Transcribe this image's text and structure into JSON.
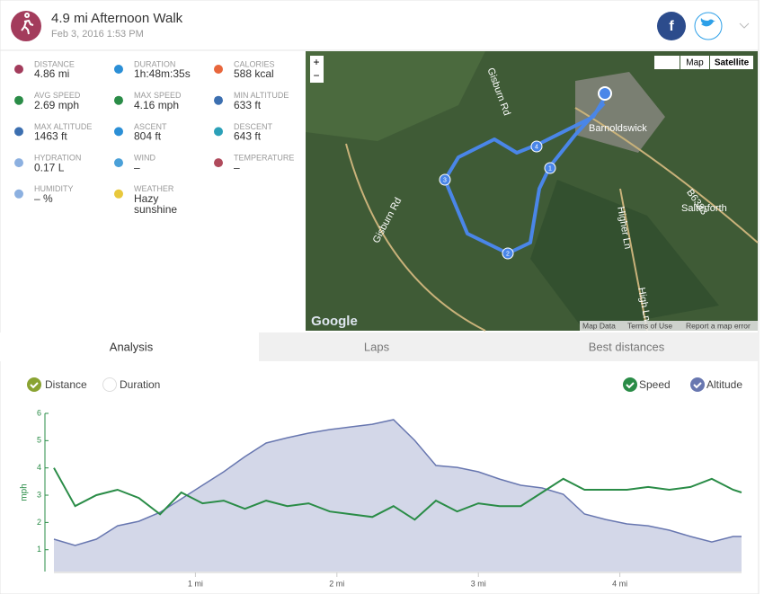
{
  "header": {
    "title": "4.9 mi Afternoon Walk",
    "date": "Feb 3, 2016 1:53 PM",
    "share": "f"
  },
  "stats": [
    {
      "label": "DISTANCE",
      "value": "4.86 mi"
    },
    {
      "label": "DURATION",
      "value": "1h:48m:35s"
    },
    {
      "label": "CALORIES",
      "value": "588 kcal"
    },
    {
      "label": "AVG SPEED",
      "value": "2.69 mph"
    },
    {
      "label": "MAX SPEED",
      "value": "4.16 mph"
    },
    {
      "label": "MIN ALTITUDE",
      "value": "633 ft"
    },
    {
      "label": "MAX ALTITUDE",
      "value": "1463 ft"
    },
    {
      "label": "ASCENT",
      "value": "804 ft"
    },
    {
      "label": "DESCENT",
      "value": "643 ft"
    },
    {
      "label": "HYDRATION",
      "value": "0.17 L"
    },
    {
      "label": "WIND",
      "value": "–"
    },
    {
      "label": "TEMPERATURE",
      "value": "–"
    },
    {
      "label": "HUMIDITY",
      "value": "– %"
    },
    {
      "label": "WEATHER",
      "value": "Hazy sunshine"
    }
  ],
  "map": {
    "zoom_in": "+",
    "zoom_out": "−",
    "modes": [
      "Map",
      "Satellite"
    ],
    "places": [
      "Barnoldswick",
      "Salterforth",
      "Gisburn Rd",
      "Gisburn Rd",
      "Higher Ln",
      "High Ln",
      "B6383"
    ],
    "markers": [
      "1",
      "2",
      "3",
      "4"
    ],
    "logo": "Google",
    "footer": [
      "Map Data",
      "Terms of Use",
      "Report a map error"
    ]
  },
  "tabs": [
    "Analysis",
    "Laps",
    "Best distances"
  ],
  "x_modes": [
    "Distance",
    "Duration"
  ],
  "chart_data": {
    "type": "line",
    "y_label": "mph",
    "x": [
      0,
      0.15,
      0.3,
      0.45,
      0.6,
      0.75,
      0.9,
      1.05,
      1.2,
      1.35,
      1.5,
      1.65,
      1.8,
      1.95,
      2.1,
      2.25,
      2.4,
      2.55,
      2.7,
      2.85,
      3.0,
      3.15,
      3.3,
      3.45,
      3.6,
      3.75,
      3.9,
      4.05,
      4.2,
      4.35,
      4.5,
      4.65,
      4.8,
      4.86
    ],
    "xlim": [
      0,
      4.86
    ],
    "xticks": [
      {
        "value": 1,
        "label": "1 mi"
      },
      {
        "value": 2,
        "label": "2 mi"
      },
      {
        "value": 3,
        "label": "3 mi"
      },
      {
        "value": 4,
        "label": "4 mi"
      }
    ],
    "ylim": [
      0.2,
      6
    ],
    "yticks": [
      1,
      2,
      3,
      4,
      5,
      6
    ],
    "y2lim": [
      496,
      1503
    ],
    "series": [
      {
        "name": "Speed",
        "color": "#2a8c47",
        "values": [
          4.0,
          2.6,
          3.0,
          3.2,
          2.9,
          2.3,
          3.1,
          2.7,
          2.8,
          2.5,
          2.8,
          2.6,
          2.7,
          2.4,
          2.3,
          2.2,
          2.6,
          2.1,
          2.8,
          2.4,
          2.7,
          2.6,
          2.6,
          3.1,
          3.6,
          3.2,
          3.2,
          3.2,
          3.3,
          3.2,
          3.3,
          3.6,
          3.2,
          3.1
        ]
      },
      {
        "name": "Altitude",
        "color": "#6877b0",
        "fill": "#d3d7e8",
        "axis": "y2",
        "values": [
          702,
          662,
          702,
          787,
          816,
          873,
          959,
          1045,
          1131,
          1228,
          1314,
          1348,
          1377,
          1400,
          1417,
          1434,
          1463,
          1331,
          1171,
          1159,
          1131,
          1085,
          1045,
          1028,
          988,
          862,
          827,
          799,
          787,
          759,
          719,
          684,
          719,
          719
        ]
      }
    ]
  }
}
